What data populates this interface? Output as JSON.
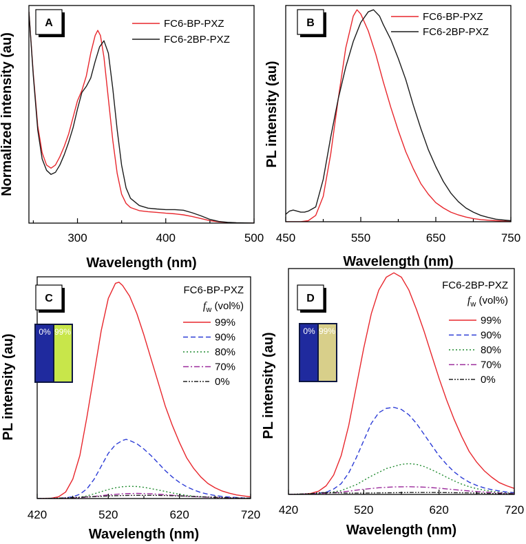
{
  "chart_data": [
    {
      "panel": "A",
      "type": "line",
      "xlabel": "Wavelength (nm)",
      "ylabel": "Normalized intensity (au)",
      "xlim": [
        245,
        500
      ],
      "ylim": [
        0,
        1.05
      ],
      "xticks": [
        300,
        400,
        500
      ],
      "xtick_labels": [
        "300",
        "400",
        "500"
      ],
      "show_yticks": false,
      "legend_position": "top-right",
      "series": [
        {
          "name": "FC6-BP-PXZ",
          "color": "#e8262c",
          "dash": "",
          "x": [
            245,
            250,
            255,
            260,
            265,
            270,
            275,
            280,
            285,
            290,
            295,
            300,
            305,
            310,
            315,
            320,
            323,
            326,
            330,
            335,
            340,
            345,
            350,
            355,
            360,
            370,
            380,
            390,
            400,
            410,
            420,
            430,
            440,
            450,
            460,
            470,
            480,
            490,
            500
          ],
          "y": [
            1.02,
            0.72,
            0.47,
            0.34,
            0.28,
            0.265,
            0.28,
            0.32,
            0.37,
            0.43,
            0.51,
            0.59,
            0.64,
            0.71,
            0.82,
            0.905,
            0.93,
            0.905,
            0.8,
            0.6,
            0.4,
            0.24,
            0.14,
            0.095,
            0.075,
            0.06,
            0.055,
            0.052,
            0.048,
            0.045,
            0.04,
            0.032,
            0.022,
            0.012,
            0.006,
            0.003,
            0.001,
            0.0,
            0.0
          ]
        },
        {
          "name": "FC6-2BP-PXZ",
          "color": "#1a1a1a",
          "dash": "",
          "x": [
            245,
            250,
            255,
            260,
            265,
            270,
            275,
            280,
            285,
            290,
            295,
            300,
            305,
            310,
            315,
            320,
            325,
            330,
            335,
            340,
            345,
            350,
            355,
            360,
            370,
            380,
            390,
            400,
            410,
            420,
            430,
            440,
            450,
            460,
            470,
            480,
            490,
            500
          ],
          "y": [
            1.02,
            0.71,
            0.45,
            0.31,
            0.255,
            0.235,
            0.245,
            0.28,
            0.33,
            0.39,
            0.46,
            0.55,
            0.63,
            0.66,
            0.7,
            0.78,
            0.85,
            0.88,
            0.82,
            0.65,
            0.45,
            0.28,
            0.17,
            0.12,
            0.085,
            0.072,
            0.068,
            0.065,
            0.065,
            0.062,
            0.05,
            0.035,
            0.018,
            0.008,
            0.004,
            0.002,
            0.001,
            0.0
          ]
        }
      ]
    },
    {
      "panel": "B",
      "type": "line",
      "xlabel": "Wavelength (nm)",
      "ylabel": "PL intensity (au)",
      "xlim": [
        450,
        750
      ],
      "ylim": [
        0,
        1.02
      ],
      "xticks": [
        450,
        550,
        650,
        750
      ],
      "xtick_labels": [
        "450",
        "550",
        "650",
        "750"
      ],
      "show_yticks": false,
      "legend_position": "top-right",
      "series": [
        {
          "name": "FC6-BP-PXZ",
          "color": "#e8262c",
          "dash": "",
          "x": [
            450,
            470,
            480,
            490,
            500,
            510,
            520,
            530,
            540,
            545,
            550,
            560,
            570,
            580,
            590,
            600,
            610,
            620,
            630,
            640,
            650,
            660,
            670,
            680,
            690,
            700,
            710,
            720,
            730,
            740,
            750
          ],
          "y": [
            0.0,
            0.0,
            0.005,
            0.03,
            0.12,
            0.32,
            0.58,
            0.82,
            0.97,
            1.0,
            0.98,
            0.9,
            0.79,
            0.66,
            0.54,
            0.43,
            0.33,
            0.25,
            0.18,
            0.13,
            0.09,
            0.065,
            0.045,
            0.032,
            0.022,
            0.015,
            0.01,
            0.007,
            0.005,
            0.003,
            0.002
          ]
        },
        {
          "name": "FC6-2BP-PXZ",
          "color": "#1a1a1a",
          "dash": "",
          "x": [
            450,
            455,
            460,
            465,
            470,
            475,
            480,
            490,
            500,
            510,
            520,
            530,
            540,
            550,
            560,
            567,
            575,
            580,
            590,
            600,
            610,
            620,
            630,
            640,
            650,
            660,
            670,
            680,
            690,
            700,
            710,
            720,
            730,
            740,
            750
          ],
          "y": [
            0.035,
            0.05,
            0.055,
            0.05,
            0.045,
            0.045,
            0.05,
            0.07,
            0.2,
            0.4,
            0.58,
            0.73,
            0.85,
            0.94,
            0.99,
            1.0,
            0.97,
            0.93,
            0.86,
            0.77,
            0.67,
            0.55,
            0.44,
            0.34,
            0.26,
            0.19,
            0.135,
            0.095,
            0.065,
            0.045,
            0.03,
            0.02,
            0.012,
            0.008,
            0.005
          ]
        }
      ]
    },
    {
      "panel": "C",
      "type": "line",
      "xlabel": "Wavelength (nm)",
      "ylabel": "PL intensity (au)",
      "xlim": [
        420,
        720
      ],
      "ylim": [
        0,
        1.03
      ],
      "xticks": [
        420,
        520,
        620,
        720
      ],
      "xtick_labels": [
        "420",
        "520",
        "620",
        "720"
      ],
      "show_yticks": false,
      "legend_position": "top-right",
      "legend_title": "FC6-BP-PXZ",
      "legend_subtitle_symbol": "f",
      "legend_subtitle_sub": "w",
      "legend_subtitle_unit": " (vol%)",
      "vial_labels": [
        "0%",
        "99%"
      ],
      "series": [
        {
          "name": "99%",
          "color": "#e8262c",
          "dash": "",
          "x": [
            420,
            440,
            450,
            460,
            470,
            480,
            490,
            500,
            510,
            520,
            530,
            535,
            540,
            550,
            560,
            570,
            580,
            590,
            600,
            610,
            620,
            630,
            640,
            650,
            660,
            670,
            680,
            690,
            700,
            710,
            720
          ],
          "y": [
            0.0,
            0.002,
            0.008,
            0.03,
            0.09,
            0.2,
            0.38,
            0.58,
            0.78,
            0.93,
            1.0,
            1.005,
            0.99,
            0.94,
            0.86,
            0.76,
            0.65,
            0.54,
            0.43,
            0.34,
            0.26,
            0.19,
            0.14,
            0.1,
            0.07,
            0.05,
            0.035,
            0.025,
            0.017,
            0.012,
            0.008
          ]
        },
        {
          "name": "90%",
          "color": "#2b3bd6",
          "dash": "7 4",
          "x": [
            420,
            450,
            470,
            480,
            490,
            500,
            510,
            520,
            530,
            540,
            545,
            550,
            560,
            570,
            580,
            590,
            600,
            610,
            620,
            630,
            640,
            650,
            660,
            670,
            680,
            690,
            700,
            710,
            720
          ],
          "y": [
            0.0,
            0.0,
            0.008,
            0.02,
            0.045,
            0.09,
            0.15,
            0.21,
            0.25,
            0.27,
            0.275,
            0.27,
            0.255,
            0.23,
            0.2,
            0.165,
            0.13,
            0.1,
            0.075,
            0.055,
            0.04,
            0.028,
            0.02,
            0.014,
            0.01,
            0.007,
            0.005,
            0.003,
            0.002
          ]
        },
        {
          "name": "80%",
          "color": "#1f8a2e",
          "dash": "2 3",
          "x": [
            420,
            450,
            470,
            480,
            490,
            500,
            510,
            520,
            530,
            540,
            550,
            560,
            570,
            580,
            590,
            600,
            610,
            620,
            630,
            640,
            650,
            660,
            670,
            680,
            690,
            700,
            720
          ],
          "y": [
            0.0,
            0.0,
            0.003,
            0.006,
            0.012,
            0.022,
            0.032,
            0.042,
            0.05,
            0.055,
            0.057,
            0.056,
            0.052,
            0.046,
            0.04,
            0.033,
            0.026,
            0.02,
            0.015,
            0.011,
            0.008,
            0.006,
            0.004,
            0.003,
            0.002,
            0.001,
            0.0
          ]
        },
        {
          "name": "70%",
          "color": "#9b2a9b",
          "dash": "8 3 2 3",
          "x": [
            420,
            450,
            480,
            500,
            520,
            540,
            560,
            580,
            600,
            620,
            640,
            660,
            680,
            700,
            720
          ],
          "y": [
            0.0,
            0.0,
            0.004,
            0.01,
            0.017,
            0.022,
            0.024,
            0.022,
            0.018,
            0.013,
            0.009,
            0.006,
            0.004,
            0.002,
            0.001
          ]
        },
        {
          "name": "0%",
          "color": "#222222",
          "dash": "6 2 2 2 2 2",
          "x": [
            420,
            450,
            480,
            500,
            520,
            540,
            560,
            580,
            600,
            620,
            640,
            660,
            680,
            700,
            720
          ],
          "y": [
            0.0,
            0.002,
            0.006,
            0.009,
            0.012,
            0.014,
            0.015,
            0.015,
            0.014,
            0.012,
            0.01,
            0.007,
            0.005,
            0.003,
            0.002
          ]
        }
      ]
    },
    {
      "panel": "D",
      "type": "line",
      "xlabel": "Wavelength (nm)",
      "ylabel": "PL intensity (au)",
      "xlim": [
        420,
        720
      ],
      "ylim": [
        0,
        1.05
      ],
      "xticks": [
        420,
        520,
        620,
        720
      ],
      "xtick_labels": [
        "420",
        "520",
        "620",
        "720"
      ],
      "show_yticks": false,
      "legend_position": "top-right",
      "legend_title": "FC6-2BP-PXZ",
      "legend_subtitle_symbol": "f",
      "legend_subtitle_sub": "w",
      "legend_subtitle_unit": " (vol%)",
      "vial_labels": [
        "0%",
        "99%"
      ],
      "series": [
        {
          "name": "99%",
          "color": "#e8262c",
          "dash": "",
          "x": [
            420,
            440,
            450,
            460,
            470,
            480,
            490,
            500,
            510,
            520,
            530,
            540,
            550,
            560,
            570,
            580,
            590,
            600,
            610,
            620,
            630,
            640,
            650,
            660,
            670,
            680,
            690,
            700,
            710,
            720
          ],
          "y": [
            0.0,
            0.002,
            0.005,
            0.015,
            0.04,
            0.09,
            0.18,
            0.32,
            0.5,
            0.68,
            0.84,
            0.95,
            1.01,
            1.03,
            1.01,
            0.95,
            0.86,
            0.76,
            0.65,
            0.54,
            0.44,
            0.35,
            0.27,
            0.2,
            0.15,
            0.11,
            0.08,
            0.055,
            0.04,
            0.028
          ]
        },
        {
          "name": "90%",
          "color": "#2b3bd6",
          "dash": "7 4",
          "x": [
            420,
            450,
            470,
            480,
            490,
            500,
            510,
            520,
            530,
            540,
            550,
            560,
            570,
            580,
            590,
            600,
            610,
            620,
            630,
            640,
            650,
            660,
            670,
            680,
            690,
            700,
            710,
            720
          ],
          "y": [
            0.0,
            0.002,
            0.01,
            0.025,
            0.05,
            0.1,
            0.17,
            0.25,
            0.33,
            0.38,
            0.4,
            0.405,
            0.395,
            0.37,
            0.33,
            0.28,
            0.23,
            0.18,
            0.14,
            0.105,
            0.078,
            0.057,
            0.042,
            0.03,
            0.022,
            0.016,
            0.011,
            0.008
          ]
        },
        {
          "name": "80%",
          "color": "#1f8a2e",
          "dash": "2 3",
          "x": [
            420,
            450,
            470,
            490,
            510,
            530,
            550,
            570,
            580,
            590,
            600,
            610,
            620,
            630,
            640,
            650,
            660,
            670,
            680,
            690,
            700,
            710,
            720
          ],
          "y": [
            0.0,
            0.002,
            0.006,
            0.018,
            0.045,
            0.085,
            0.12,
            0.14,
            0.143,
            0.14,
            0.13,
            0.115,
            0.098,
            0.08,
            0.063,
            0.048,
            0.036,
            0.027,
            0.02,
            0.014,
            0.01,
            0.007,
            0.005
          ]
        },
        {
          "name": "70%",
          "color": "#9b2a9b",
          "dash": "8 3 2 3",
          "x": [
            420,
            450,
            480,
            500,
            520,
            540,
            560,
            580,
            600,
            620,
            640,
            660,
            680,
            700,
            720
          ],
          "y": [
            0.0,
            0.002,
            0.008,
            0.015,
            0.024,
            0.031,
            0.035,
            0.036,
            0.034,
            0.029,
            0.022,
            0.016,
            0.011,
            0.007,
            0.004
          ]
        },
        {
          "name": "0%",
          "color": "#222222",
          "dash": "6 2 2 2 2 2",
          "x": [
            420,
            450,
            460,
            480,
            500,
            520,
            540,
            560,
            580,
            600,
            620,
            640,
            660,
            680,
            700,
            720
          ],
          "y": [
            0.0,
            0.004,
            0.008,
            0.008,
            0.006,
            0.006,
            0.007,
            0.008,
            0.009,
            0.009,
            0.009,
            0.008,
            0.007,
            0.005,
            0.004,
            0.003
          ]
        }
      ]
    }
  ],
  "vial_colors": {
    "C": [
      "#1f2a9e",
      "#c8e64a"
    ],
    "D": [
      "#1f2a9e",
      "#d8cf8a"
    ]
  }
}
